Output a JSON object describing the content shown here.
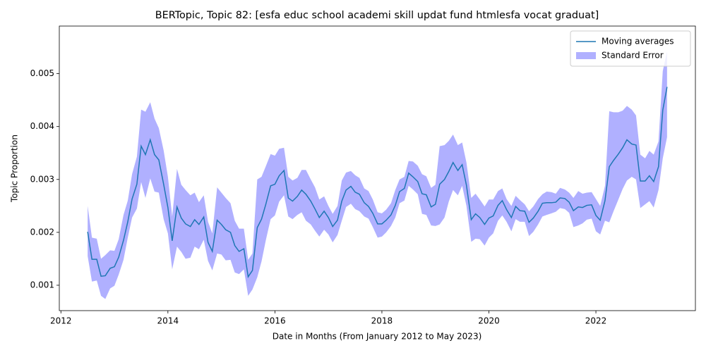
{
  "chart_data": {
    "type": "line",
    "title": "BERTopic, Topic 82: [esfa educ school academi skill updat fund htmlesfa vocat graduat]",
    "x_label": "Date in Months (From January 2012 to May 2023)",
    "y_label": "Topic Proportion",
    "xlim": [
      2011.97,
      2023.86
    ],
    "xticks": [
      2012,
      2014,
      2016,
      2018,
      2020,
      2022
    ],
    "ylim": [
      0.00052,
      0.0059
    ],
    "yticks": [
      0.001,
      0.002,
      0.003,
      0.004,
      0.005
    ],
    "legend": "upper right",
    "x": [
      2012.5,
      2012.58,
      2012.67,
      2012.75,
      2012.83,
      2012.92,
      2013,
      2013.08,
      2013.17,
      2013.25,
      2013.33,
      2013.42,
      2013.5,
      2013.58,
      2013.67,
      2013.75,
      2013.83,
      2013.92,
      2014,
      2014.08,
      2014.17,
      2014.25,
      2014.33,
      2014.42,
      2014.5,
      2014.58,
      2014.67,
      2014.75,
      2014.83,
      2014.92,
      2015,
      2015.08,
      2015.17,
      2015.25,
      2015.33,
      2015.42,
      2015.5,
      2015.58,
      2015.67,
      2015.75,
      2015.83,
      2015.92,
      2016,
      2016.08,
      2016.17,
      2016.25,
      2016.33,
      2016.42,
      2016.5,
      2016.58,
      2016.67,
      2016.75,
      2016.83,
      2016.92,
      2017,
      2017.08,
      2017.17,
      2017.25,
      2017.33,
      2017.42,
      2017.5,
      2017.58,
      2017.67,
      2017.75,
      2017.83,
      2017.92,
      2018,
      2018.08,
      2018.17,
      2018.25,
      2018.33,
      2018.42,
      2018.5,
      2018.58,
      2018.67,
      2018.75,
      2018.83,
      2018.92,
      2019,
      2019.08,
      2019.17,
      2019.25,
      2019.33,
      2019.42,
      2019.5,
      2019.58,
      2019.67,
      2019.75,
      2019.83,
      2019.92,
      2020,
      2020.08,
      2020.17,
      2020.25,
      2020.33,
      2020.42,
      2020.5,
      2020.58,
      2020.67,
      2020.75,
      2020.83,
      2020.92,
      2021,
      2021.08,
      2021.17,
      2021.25,
      2021.33,
      2021.42,
      2021.5,
      2021.58,
      2021.67,
      2021.75,
      2021.83,
      2021.92,
      2022,
      2022.08,
      2022.17,
      2022.25,
      2022.33,
      2022.42,
      2022.5,
      2022.58,
      2022.67,
      2022.75,
      2022.83,
      2022.92,
      2023,
      2023.08,
      2023.17,
      2023.25,
      2023.33
    ],
    "series": [
      {
        "name": "Moving averages",
        "color": "#1f77b4",
        "values": [
          0.00201,
          0.00149,
          0.00149,
          0.00117,
          0.00118,
          0.00132,
          0.00135,
          0.00153,
          0.00185,
          0.0022,
          0.00263,
          0.00291,
          0.00363,
          0.00347,
          0.00375,
          0.00347,
          0.00337,
          0.00291,
          0.00247,
          0.00184,
          0.00248,
          0.00227,
          0.00216,
          0.00211,
          0.00224,
          0.00215,
          0.00229,
          0.00181,
          0.00164,
          0.00223,
          0.00215,
          0.00205,
          0.002,
          0.00175,
          0.00164,
          0.00169,
          0.00116,
          0.00128,
          0.00209,
          0.00225,
          0.00253,
          0.00288,
          0.00291,
          0.00307,
          0.00317,
          0.00265,
          0.00259,
          0.00268,
          0.0028,
          0.00272,
          0.00259,
          0.00244,
          0.00228,
          0.0024,
          0.00228,
          0.00211,
          0.00223,
          0.00259,
          0.0028,
          0.00287,
          0.00276,
          0.00272,
          0.00256,
          0.00249,
          0.00236,
          0.00216,
          0.00216,
          0.00223,
          0.00233,
          0.00251,
          0.00277,
          0.00283,
          0.00312,
          0.00305,
          0.00296,
          0.00273,
          0.00271,
          0.00248,
          0.00253,
          0.00291,
          0.003,
          0.00315,
          0.00332,
          0.00317,
          0.00328,
          0.00289,
          0.00224,
          0.00235,
          0.00228,
          0.00215,
          0.00227,
          0.00231,
          0.00251,
          0.0026,
          0.00243,
          0.00228,
          0.00249,
          0.00241,
          0.0024,
          0.00219,
          0.00227,
          0.0024,
          0.00255,
          0.00256,
          0.00256,
          0.00257,
          0.00265,
          0.00264,
          0.00257,
          0.00241,
          0.00248,
          0.00247,
          0.00251,
          0.00252,
          0.00232,
          0.00223,
          0.0026,
          0.00324,
          0.00336,
          0.00348,
          0.0036,
          0.00375,
          0.00367,
          0.00365,
          0.00297,
          0.00297,
          0.00307,
          0.00296,
          0.00324,
          0.00431,
          0.00475
        ]
      }
    ],
    "band": {
      "name": "Standard Error",
      "color": "#b0b0ff",
      "upper": [
        0.0025,
        0.0019,
        0.00188,
        0.0015,
        0.00157,
        0.00166,
        0.00165,
        0.00187,
        0.00233,
        0.0026,
        0.0031,
        0.00343,
        0.00432,
        0.00428,
        0.00446,
        0.00415,
        0.00397,
        0.00355,
        0.00305,
        0.0023,
        0.0032,
        0.0029,
        0.0028,
        0.0027,
        0.00275,
        0.00257,
        0.0027,
        0.0022,
        0.00198,
        0.00285,
        0.00275,
        0.00265,
        0.00255,
        0.00222,
        0.00207,
        0.00207,
        0.00148,
        0.0016,
        0.003,
        0.00305,
        0.00325,
        0.00348,
        0.00345,
        0.00358,
        0.0036,
        0.00305,
        0.00298,
        0.00303,
        0.00318,
        0.00318,
        0.003,
        0.00285,
        0.00262,
        0.00268,
        0.0025,
        0.00235,
        0.0025,
        0.00298,
        0.00313,
        0.00316,
        0.00308,
        0.00303,
        0.00283,
        0.00278,
        0.00262,
        0.00238,
        0.00236,
        0.00243,
        0.00255,
        0.0028,
        0.003,
        0.00305,
        0.00335,
        0.00334,
        0.00326,
        0.0031,
        0.00306,
        0.00284,
        0.0029,
        0.00363,
        0.00365,
        0.00373,
        0.00385,
        0.00365,
        0.0037,
        0.00332,
        0.00265,
        0.00273,
        0.00262,
        0.00249,
        0.00262,
        0.00262,
        0.00278,
        0.00283,
        0.00263,
        0.0025,
        0.00269,
        0.00261,
        0.00253,
        0.0024,
        0.00249,
        0.00263,
        0.00272,
        0.00277,
        0.00276,
        0.00273,
        0.00284,
        0.00281,
        0.00275,
        0.00265,
        0.00278,
        0.00273,
        0.00275,
        0.00276,
        0.00263,
        0.0025,
        0.00288,
        0.00429,
        0.00427,
        0.00427,
        0.0043,
        0.00439,
        0.00432,
        0.00421,
        0.00347,
        0.0034,
        0.00354,
        0.00347,
        0.00372,
        0.00505,
        0.00542
      ],
      "lower": [
        0.00155,
        0.00107,
        0.00109,
        0.0008,
        0.00074,
        0.00094,
        0.00099,
        0.0012,
        0.00148,
        0.0019,
        0.00228,
        0.00245,
        0.00295,
        0.00265,
        0.00302,
        0.00277,
        0.00275,
        0.00225,
        0.00198,
        0.0013,
        0.00173,
        0.00163,
        0.0015,
        0.00152,
        0.00173,
        0.00168,
        0.00186,
        0.00146,
        0.00128,
        0.0016,
        0.00158,
        0.00147,
        0.00148,
        0.00124,
        0.00121,
        0.0013,
        0.0008,
        0.00092,
        0.00115,
        0.00145,
        0.00185,
        0.00225,
        0.00232,
        0.00258,
        0.0027,
        0.0023,
        0.00225,
        0.00233,
        0.00238,
        0.00222,
        0.00215,
        0.00203,
        0.00192,
        0.00205,
        0.00196,
        0.00181,
        0.00195,
        0.00222,
        0.00248,
        0.00254,
        0.00244,
        0.0024,
        0.0023,
        0.00226,
        0.0021,
        0.0019,
        0.00192,
        0.002,
        0.00212,
        0.00228,
        0.00255,
        0.0026,
        0.00288,
        0.00281,
        0.00272,
        0.00235,
        0.00233,
        0.00213,
        0.00212,
        0.00215,
        0.00228,
        0.00258,
        0.0028,
        0.0027,
        0.00288,
        0.0025,
        0.00182,
        0.00188,
        0.00187,
        0.00175,
        0.0019,
        0.00198,
        0.00222,
        0.00232,
        0.0022,
        0.00202,
        0.00225,
        0.0022,
        0.0022,
        0.00193,
        0.00201,
        0.00215,
        0.0023,
        0.00233,
        0.00236,
        0.00239,
        0.00246,
        0.00244,
        0.00237,
        0.0021,
        0.00213,
        0.00217,
        0.00224,
        0.00226,
        0.00202,
        0.00196,
        0.00222,
        0.00219,
        0.0024,
        0.00262,
        0.00282,
        0.00298,
        0.00305,
        0.003,
        0.00246,
        0.00253,
        0.00259,
        0.00247,
        0.0028,
        0.0034,
        0.0038
      ]
    }
  }
}
